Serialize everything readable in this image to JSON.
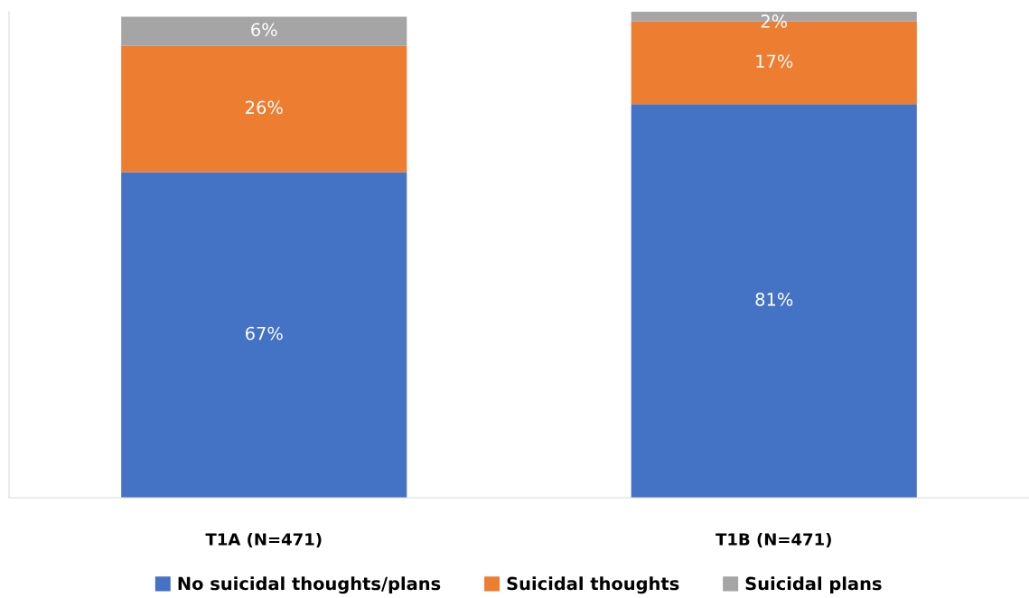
{
  "chart_data": {
    "type": "bar",
    "stacked": true,
    "categories": [
      "T1A (N=471)",
      "T1B (N=471)"
    ],
    "series": [
      {
        "name": "No suicidal thoughts/plans",
        "color": "#4472c4",
        "values": [
          67,
          81
        ],
        "value_labels": [
          "67%",
          "81%"
        ]
      },
      {
        "name": "Suicidal thoughts",
        "color": "#ed7d31",
        "values": [
          26,
          17
        ],
        "value_labels": [
          "26%",
          "17%"
        ]
      },
      {
        "name": "Suicidal plans",
        "color": "#a5a5a5",
        "values": [
          6,
          2
        ],
        "value_labels": [
          "6%",
          "2%"
        ]
      }
    ],
    "tick_labels": "x",
    "legend": "bottom",
    "grid": false
  }
}
